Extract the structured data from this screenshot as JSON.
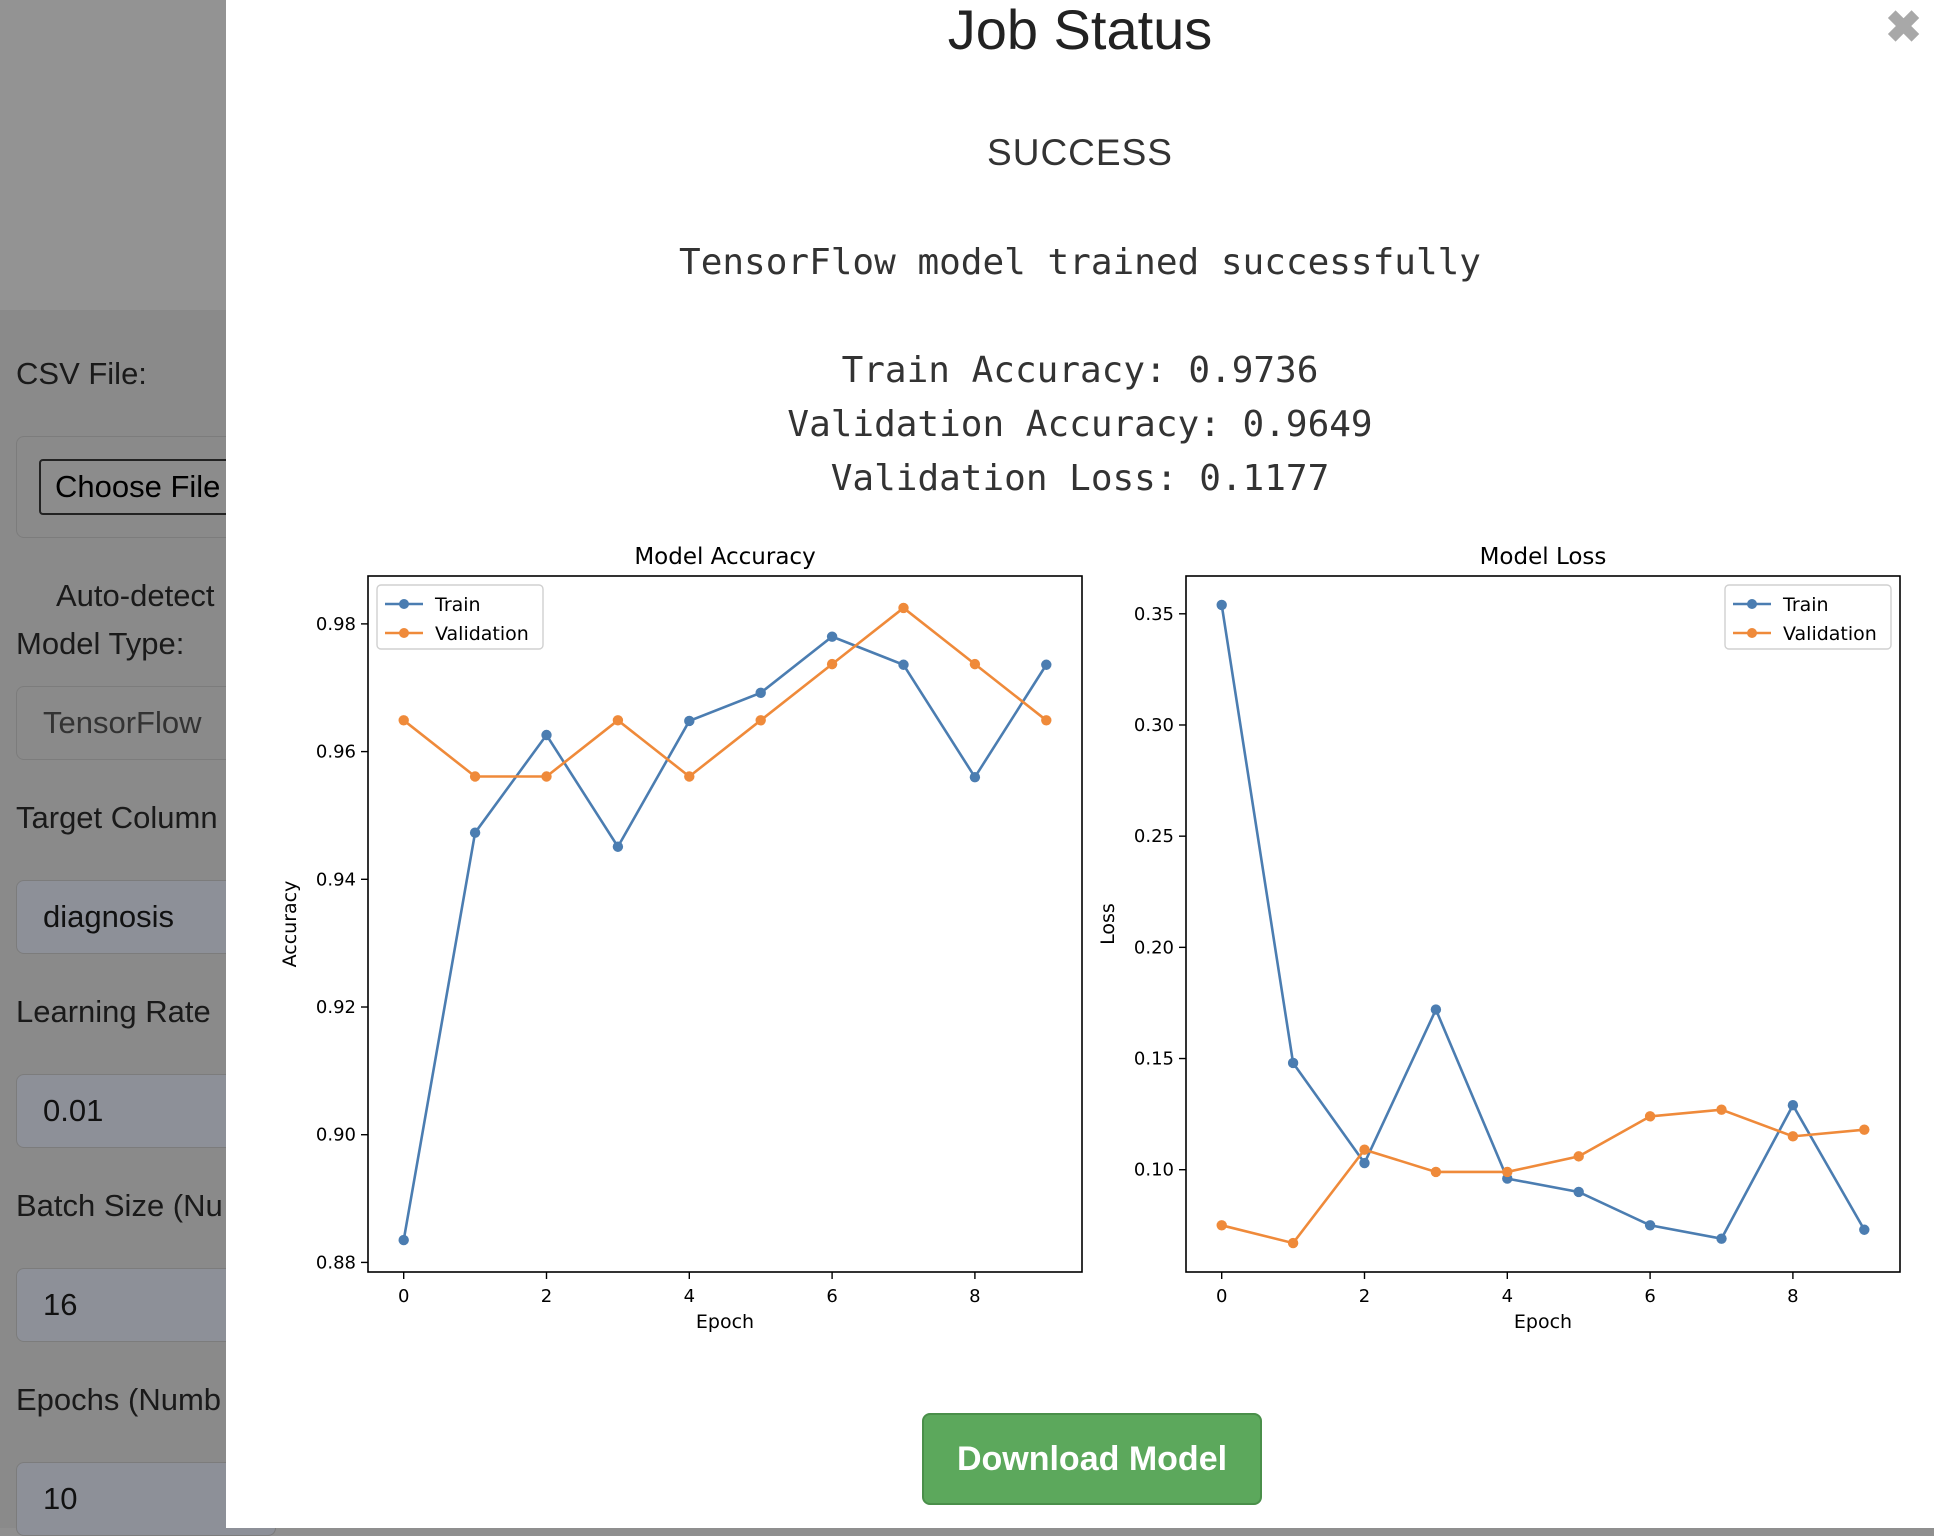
{
  "form": {
    "csv_label": "CSV File:",
    "choose_file_label": "Choose File",
    "auto_detect_label": "Auto-detect",
    "model_type_label": "Model Type:",
    "model_type_value": "TensorFlow",
    "target_column_label": "Target Column",
    "target_column_value": "diagnosis",
    "learning_rate_label": "Learning Rate",
    "learning_rate_value": "0.01",
    "batch_size_label": "Batch Size (Nu",
    "batch_size_value": "16",
    "epochs_label": "Epochs (Numb",
    "epochs_value": "10"
  },
  "modal": {
    "title": "Job Status",
    "close_glyph": "✖",
    "status": "SUCCESS",
    "message": "TensorFlow model trained successfully",
    "metrics": [
      "Train Accuracy: 0.9736",
      "Validation Accuracy: 0.9649",
      "Validation Loss: 0.1177"
    ],
    "download_label": "Download Model"
  },
  "colors": {
    "train": "#4b7db1",
    "validation": "#ef8a3a",
    "download": "#5ca85c"
  },
  "chart_data": [
    {
      "type": "line",
      "title": "Model Accuracy",
      "xlabel": "Epoch",
      "ylabel": "Accuracy",
      "x": [
        0,
        1,
        2,
        3,
        4,
        5,
        6,
        7,
        8,
        9
      ],
      "xlim": [
        -0.5,
        9.5
      ],
      "ylim": [
        0.8785,
        0.9875
      ],
      "xticks": [
        0,
        2,
        4,
        6,
        8
      ],
      "yticks": [
        0.88,
        0.9,
        0.92,
        0.94,
        0.96,
        0.98
      ],
      "yticklabels": [
        "0.88",
        "0.90",
        "0.92",
        "0.94",
        "0.96",
        "0.98"
      ],
      "legend": "top-left",
      "grid": false,
      "series": [
        {
          "name": "Train",
          "color": "#4b7db1",
          "values": [
            0.8835,
            0.9473,
            0.9626,
            0.9451,
            0.9648,
            0.9692,
            0.978,
            0.9736,
            0.956,
            0.9736
          ]
        },
        {
          "name": "Validation",
          "color": "#ef8a3a",
          "values": [
            0.9649,
            0.9561,
            0.9561,
            0.9649,
            0.9561,
            0.9649,
            0.9737,
            0.9825,
            0.9737,
            0.9649
          ]
        }
      ]
    },
    {
      "type": "line",
      "title": "Model Loss",
      "xlabel": "Epoch",
      "ylabel": "Loss",
      "x": [
        0,
        1,
        2,
        3,
        4,
        5,
        6,
        7,
        8,
        9
      ],
      "xlim": [
        -0.5,
        9.5
      ],
      "ylim": [
        0.054,
        0.367
      ],
      "xticks": [
        0,
        2,
        4,
        6,
        8
      ],
      "yticks": [
        0.1,
        0.15,
        0.2,
        0.25,
        0.3,
        0.35
      ],
      "yticklabels": [
        "0.10",
        "0.15",
        "0.20",
        "0.25",
        "0.30",
        "0.35"
      ],
      "legend": "top-right",
      "grid": false,
      "series": [
        {
          "name": "Train",
          "color": "#4b7db1",
          "values": [
            0.354,
            0.148,
            0.103,
            0.172,
            0.096,
            0.09,
            0.075,
            0.069,
            0.129,
            0.073
          ]
        },
        {
          "name": "Validation",
          "color": "#ef8a3a",
          "values": [
            0.075,
            0.067,
            0.109,
            0.099,
            0.099,
            0.106,
            0.124,
            0.127,
            0.115,
            0.118
          ]
        }
      ]
    }
  ]
}
